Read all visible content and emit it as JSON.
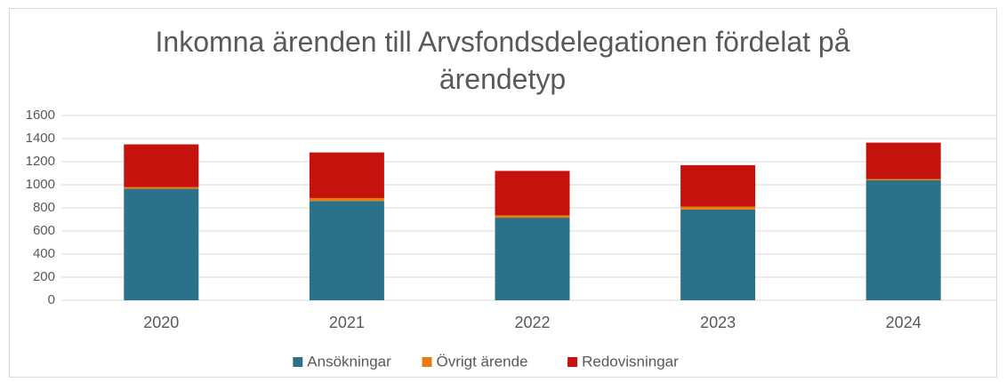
{
  "chart_data": {
    "type": "stacked_bar",
    "title": "Inkomna ärenden till Arvsfondsdelegationen fördelat på ärendetyp",
    "categories": [
      "2020",
      "2021",
      "2022",
      "2023",
      "2024"
    ],
    "series": [
      {
        "name": "Ansökningar",
        "color": "#2a7189",
        "values": [
          965,
          860,
          715,
          785,
          1040
        ]
      },
      {
        "name": "Övrigt ärende",
        "color": "#e67e0f",
        "values": [
          15,
          25,
          20,
          25,
          10
        ]
      },
      {
        "name": "Redovisningar",
        "color": "#c5120d",
        "values": [
          370,
          395,
          385,
          360,
          315
        ]
      }
    ],
    "ylim": [
      0,
      1600
    ],
    "yticks": [
      0,
      200,
      400,
      600,
      800,
      1000,
      1200,
      1400,
      1600
    ],
    "grid": true,
    "legend": "bottom"
  }
}
